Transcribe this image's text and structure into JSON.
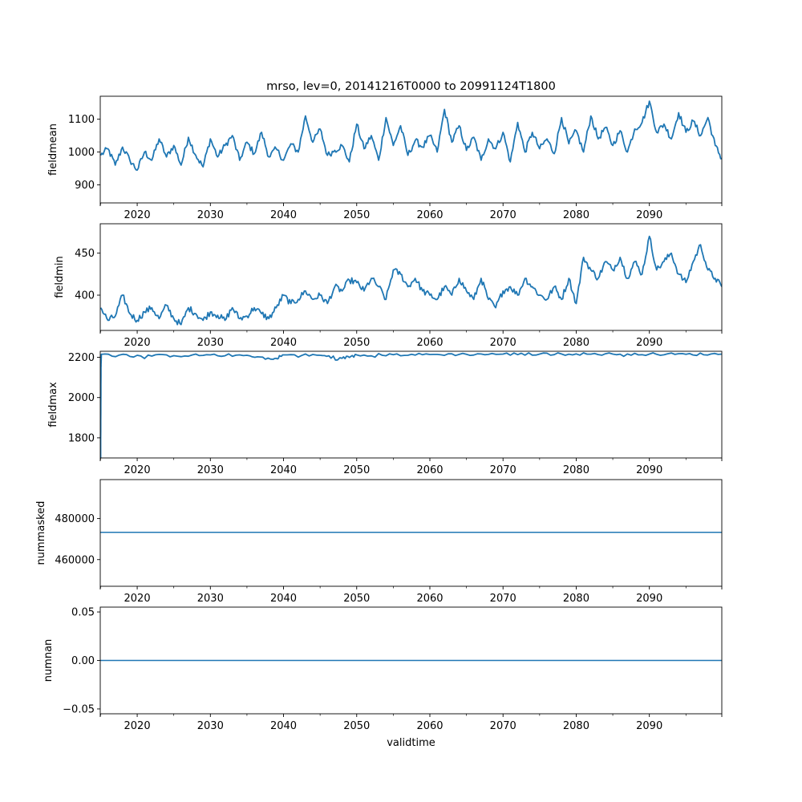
{
  "chart_data": {
    "type": "line",
    "title": "mrso, lev=0, 20141216T0000 to 20991124T1800",
    "xlabel": "validtime",
    "x_range": [
      2014.95,
      2099.9
    ],
    "x_ticks": [
      2020,
      2030,
      2040,
      2050,
      2060,
      2070,
      2080,
      2090
    ],
    "x_tick_labels": [
      "2020",
      "2030",
      "2040",
      "2050",
      "2060",
      "2070",
      "2080",
      "2090"
    ],
    "x_minor_ticks": [
      2015,
      2025,
      2035,
      2045,
      2055,
      2065,
      2075,
      2085,
      2095
    ],
    "line_color": "#1f77b4",
    "panels": [
      {
        "ylabel": "fieldmean",
        "ylim": [
          845,
          1170
        ],
        "y_ticks": [
          900,
          1000,
          1100
        ],
        "y_tick_labels": [
          "900",
          "1000",
          "1100"
        ],
        "series": {
          "x": [
            2015.0,
            2016.0,
            2017.0,
            2018.0,
            2019.0,
            2020.0,
            2021.0,
            2022.0,
            2023.0,
            2024.0,
            2025.0,
            2026.0,
            2027.0,
            2028.0,
            2029.0,
            2030.0,
            2031.0,
            2032.0,
            2033.0,
            2034.0,
            2035.0,
            2036.0,
            2037.0,
            2038.0,
            2039.0,
            2040.0,
            2041.0,
            2042.0,
            2043.0,
            2044.0,
            2045.0,
            2046.0,
            2047.0,
            2048.0,
            2049.0,
            2050.0,
            2051.0,
            2052.0,
            2053.0,
            2054.0,
            2055.0,
            2056.0,
            2057.0,
            2058.0,
            2059.0,
            2060.0,
            2061.0,
            2062.0,
            2063.0,
            2064.0,
            2065.0,
            2066.0,
            2067.0,
            2068.0,
            2069.0,
            2070.0,
            2071.0,
            2072.0,
            2073.0,
            2074.0,
            2075.0,
            2076.0,
            2077.0,
            2078.0,
            2079.0,
            2080.0,
            2081.0,
            2082.0,
            2083.0,
            2084.0,
            2085.0,
            2086.0,
            2087.0,
            2088.0,
            2089.0,
            2090.0,
            2091.0,
            2092.0,
            2093.0,
            2094.0,
            2095.0,
            2096.0,
            2097.0,
            2098.0,
            2099.0,
            2099.9
          ],
          "y": [
            990,
            1010,
            960,
            1015,
            975,
            945,
            1000,
            975,
            1040,
            985,
            1020,
            960,
            1045,
            990,
            955,
            1040,
            985,
            1020,
            1050,
            975,
            1030,
            995,
            1060,
            985,
            1010,
            975,
            1025,
            1000,
            1110,
            1030,
            1070,
            990,
            1005,
            1020,
            970,
            1085,
            1010,
            1050,
            975,
            1105,
            1020,
            1080,
            990,
            1035,
            1015,
            1050,
            1000,
            1130,
            1030,
            1080,
            1005,
            1045,
            975,
            1040,
            1010,
            1060,
            970,
            1090,
            1000,
            1060,
            1010,
            1040,
            995,
            1105,
            1025,
            1065,
            1000,
            1110,
            1040,
            1075,
            1020,
            1065,
            1000,
            1070,
            1090,
            1155,
            1060,
            1085,
            1040,
            1120,
            1060,
            1095,
            1050,
            1105,
            1020,
            980
          ]
        }
      },
      {
        "ylabel": "fieldmin",
        "ylim": [
          358,
          485
        ],
        "y_ticks": [
          400,
          450
        ],
        "y_tick_labels": [
          "400",
          "450"
        ],
        "series": {
          "x": [
            2015.0,
            2016.0,
            2017.0,
            2018.0,
            2019.0,
            2020.0,
            2021.0,
            2022.0,
            2023.0,
            2024.0,
            2025.0,
            2026.0,
            2027.0,
            2028.0,
            2029.0,
            2030.0,
            2031.0,
            2032.0,
            2033.0,
            2034.0,
            2035.0,
            2036.0,
            2037.0,
            2038.0,
            2039.0,
            2040.0,
            2041.0,
            2042.0,
            2043.0,
            2044.0,
            2045.0,
            2046.0,
            2047.0,
            2048.0,
            2049.0,
            2050.0,
            2051.0,
            2052.0,
            2053.0,
            2054.0,
            2055.0,
            2056.0,
            2057.0,
            2058.0,
            2059.0,
            2060.0,
            2061.0,
            2062.0,
            2063.0,
            2064.0,
            2065.0,
            2066.0,
            2067.0,
            2068.0,
            2069.0,
            2070.0,
            2071.0,
            2072.0,
            2073.0,
            2074.0,
            2075.0,
            2076.0,
            2077.0,
            2078.0,
            2079.0,
            2080.0,
            2081.0,
            2082.0,
            2083.0,
            2084.0,
            2085.0,
            2086.0,
            2087.0,
            2088.0,
            2089.0,
            2090.0,
            2091.0,
            2092.0,
            2093.0,
            2094.0,
            2095.0,
            2096.0,
            2097.0,
            2098.0,
            2099.0,
            2099.9
          ],
          "y": [
            385,
            370,
            375,
            400,
            378,
            370,
            380,
            385,
            372,
            388,
            372,
            365,
            385,
            378,
            370,
            380,
            376,
            370,
            385,
            372,
            375,
            385,
            378,
            372,
            385,
            400,
            390,
            395,
            405,
            395,
            400,
            390,
            410,
            405,
            418,
            415,
            405,
            420,
            410,
            395,
            430,
            425,
            410,
            420,
            405,
            400,
            395,
            410,
            400,
            420,
            405,
            395,
            420,
            395,
            385,
            405,
            410,
            400,
            420,
            410,
            400,
            395,
            410,
            395,
            420,
            390,
            445,
            430,
            420,
            440,
            430,
            445,
            420,
            440,
            425,
            470,
            430,
            440,
            450,
            425,
            415,
            440,
            460,
            430,
            420,
            410
          ]
        }
      },
      {
        "ylabel": "fieldmax",
        "ylim": [
          1700,
          2230
        ],
        "y_ticks": [
          1800,
          2000,
          2200
        ],
        "y_tick_labels": [
          "1800",
          "2000",
          "2200"
        ],
        "series": {
          "x": [
            2015.0,
            2015.05,
            2015.1,
            2020.0,
            2025.0,
            2030.0,
            2035.0,
            2038.6,
            2040.0,
            2045.0,
            2048.0,
            2050.0,
            2055.0,
            2060.0,
            2065.0,
            2070.0,
            2075.0,
            2080.0,
            2085.0,
            2090.0,
            2095.0,
            2099.9
          ],
          "y": [
            1700,
            2150,
            2215,
            2210,
            2208,
            2212,
            2210,
            2190,
            2212,
            2210,
            2195,
            2212,
            2213,
            2214,
            2215,
            2216,
            2216,
            2217,
            2216,
            2216,
            2215,
            2216
          ]
        }
      },
      {
        "ylabel": "nummasked",
        "ylim": [
          447000,
          499000
        ],
        "y_ticks": [
          460000,
          480000
        ],
        "y_tick_labels": [
          "460000",
          "480000"
        ],
        "series": {
          "x": [
            2014.95,
            2099.9
          ],
          "y": [
            473300,
            473300
          ]
        }
      },
      {
        "ylabel": "numnan",
        "ylim": [
          -0.055,
          0.055
        ],
        "y_ticks": [
          -0.05,
          0.0,
          0.05
        ],
        "y_tick_labels": [
          "−0.05",
          "0.00",
          "0.05"
        ],
        "series": {
          "x": [
            2014.95,
            2099.9
          ],
          "y": [
            0,
            0
          ]
        }
      }
    ]
  }
}
